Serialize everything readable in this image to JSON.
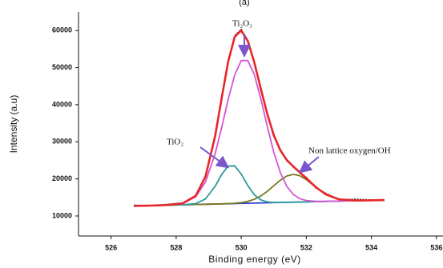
{
  "chart_data": {
    "type": "line",
    "title": "(a)",
    "x_label": "Binding energy (eV)",
    "y_label": "Intensity (a.u)",
    "x": [
      526.7,
      527.2,
      527.7,
      528.2,
      528.6,
      528.9,
      529.2,
      529.4,
      529.6,
      529.8,
      530.0,
      530.2,
      530.4,
      530.6,
      530.8,
      531.0,
      531.2,
      531.4,
      531.6,
      531.8,
      532.0,
      532.3,
      532.6,
      533.0,
      533.5,
      534.0,
      534.4
    ],
    "series": [
      {
        "color": "#3344cc",
        "values": [
          12700,
          12800,
          12910,
          13010,
          13100,
          13160,
          13220,
          13260,
          13300,
          13350,
          13390,
          13430,
          13470,
          13510,
          13550,
          13600,
          13640,
          13680,
          13720,
          13760,
          13800,
          13870,
          13930,
          14010,
          14120,
          14220,
          14300
        ]
      },
      {
        "color": "#7a7a1e",
        "values": [
          12700,
          12800,
          12910,
          13010,
          13100,
          13160,
          13220,
          13270,
          13330,
          13430,
          13600,
          13920,
          14490,
          15380,
          16640,
          18140,
          19640,
          20770,
          21220,
          20860,
          19810,
          17660,
          15800,
          14500,
          14170,
          14220,
          14300
        ]
      },
      {
        "color": "#2a9a9a",
        "values": [
          12700,
          12800,
          12910,
          13020,
          13330,
          14580,
          18030,
          21190,
          23480,
          23520,
          21310,
          18240,
          15740,
          14350,
          13790,
          13650,
          13650,
          13680,
          13720,
          13760,
          13800,
          13870,
          13930,
          14010,
          14120,
          14220,
          14300
        ]
      },
      {
        "color": "#d455d4",
        "values": [
          12700,
          12800,
          12930,
          13370,
          15180,
          19150,
          26820,
          33890,
          41470,
          48040,
          51880,
          51920,
          48160,
          41680,
          34180,
          27200,
          21720,
          18010,
          15810,
          14670,
          14160,
          13940,
          13940,
          14010,
          14120,
          14220,
          14300
        ]
      },
      {
        "color": "#222222",
        "values": [
          12900,
          12750,
          13100,
          13500,
          15300,
          20800,
          31400,
          42100,
          51500,
          58600,
          60300,
          57000,
          51700,
          44100,
          37800,
          31500,
          27900,
          24900,
          23500,
          21600,
          20400,
          17500,
          16100,
          14400,
          14500,
          14300,
          14400
        ]
      },
      {
        "color": "#e8262a",
        "values": [
          12700,
          12800,
          12930,
          13380,
          15420,
          20580,
          31630,
          41830,
          51680,
          58300,
          60020,
          57230,
          51450,
          44390,
          37510,
          31800,
          27740,
          25100,
          23310,
          21770,
          20160,
          17730,
          15810,
          14500,
          14170,
          14220,
          14300
        ]
      }
    ],
    "xlim": [
      525,
      536.2
    ],
    "ylim": [
      4600,
      65000
    ],
    "xticks": [
      526,
      528,
      530,
      532,
      534,
      536
    ],
    "yticks": [
      10000,
      20000,
      30000,
      40000,
      50000,
      60000
    ],
    "annotations": [
      "Ti₂O₃",
      "TiO₂",
      "Non lattice oxygen/OH"
    ]
  }
}
